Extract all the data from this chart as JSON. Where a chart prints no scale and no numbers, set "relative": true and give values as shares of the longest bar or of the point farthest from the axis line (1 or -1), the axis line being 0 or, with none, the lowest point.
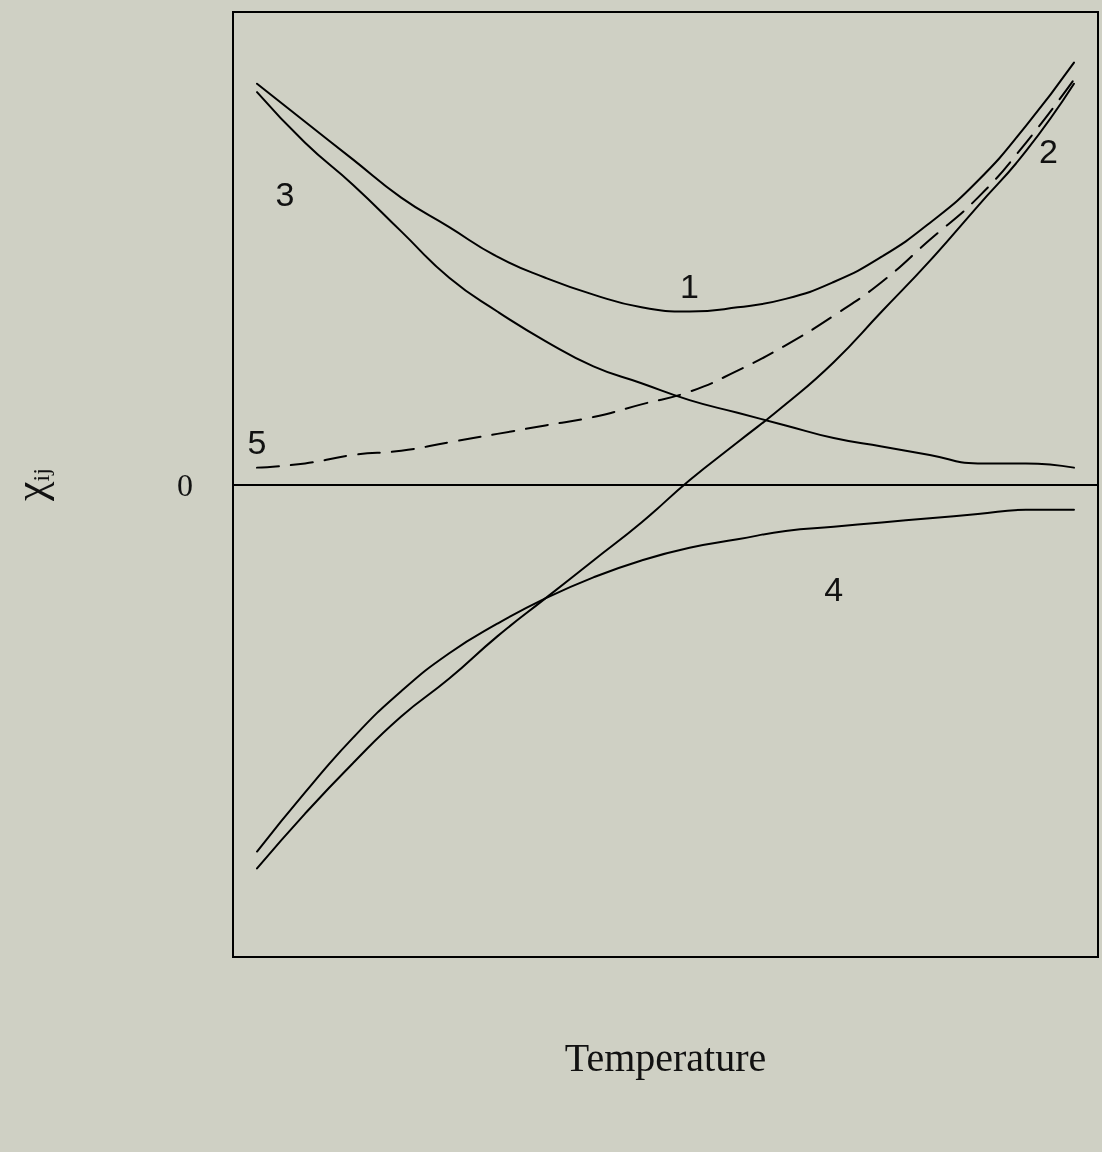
{
  "chart_data": {
    "type": "line",
    "relative": true,
    "xlabel": "Temperature",
    "ylabel": "χ$_{ij}$",
    "categories": [
      null,
      null,
      null,
      null,
      null,
      null,
      null,
      null,
      null,
      null,
      null,
      null,
      null,
      null,
      null,
      null,
      null,
      null
    ],
    "marker": "none",
    "grid": false,
    "line_style": "solid",
    "ref_lines": [
      {
        "axis": "y",
        "value": 0,
        "label": "0",
        "color": "#000000"
      }
    ],
    "series": [
      {
        "name": "1",
        "color": "#000000",
        "values": [
          0.95,
          0.86,
          0.77,
          0.68,
          0.61,
          0.54,
          0.49,
          0.45,
          0.42,
          0.41,
          0.42,
          0.44,
          0.48,
          0.54,
          0.62,
          0.72,
          0.85,
          1
        ]
      },
      {
        "name": "2",
        "color": "#000000",
        "values": [
          -0.91,
          -0.78,
          -0.66,
          -0.55,
          -0.46,
          -0.36,
          -0.27,
          -0.18,
          -0.09,
          0.01,
          0.1,
          0.19,
          0.29,
          0.41,
          0.53,
          0.66,
          0.79,
          0.95
        ]
      },
      {
        "name": "3",
        "color": "#000000",
        "values": [
          0.93,
          0.81,
          0.71,
          0.6,
          0.49,
          0.41,
          0.34,
          0.28,
          0.24,
          0.2,
          0.17,
          0.14,
          0.11,
          0.09,
          0.07,
          0.05,
          0.05,
          0.04
        ]
      },
      {
        "name": "4",
        "color": "#000000",
        "values": [
          -0.87,
          -0.73,
          -0.6,
          -0.49,
          -0.4,
          -0.33,
          -0.27,
          -0.22,
          -0.18,
          -0.15,
          -0.13,
          -0.11,
          -0.1,
          -0.09,
          -0.08,
          -0.07,
          -0.06,
          -0.06
        ]
      },
      {
        "name": "5",
        "color": "#000000",
        "line_style": "dashed",
        "values": [
          0.04,
          0.05,
          0.07,
          0.08,
          0.1,
          0.12,
          0.14,
          0.16,
          0.19,
          0.22,
          0.27,
          0.33,
          0.4,
          0.48,
          0.58,
          0.68,
          0.81,
          0.96
        ]
      }
    ]
  }
}
